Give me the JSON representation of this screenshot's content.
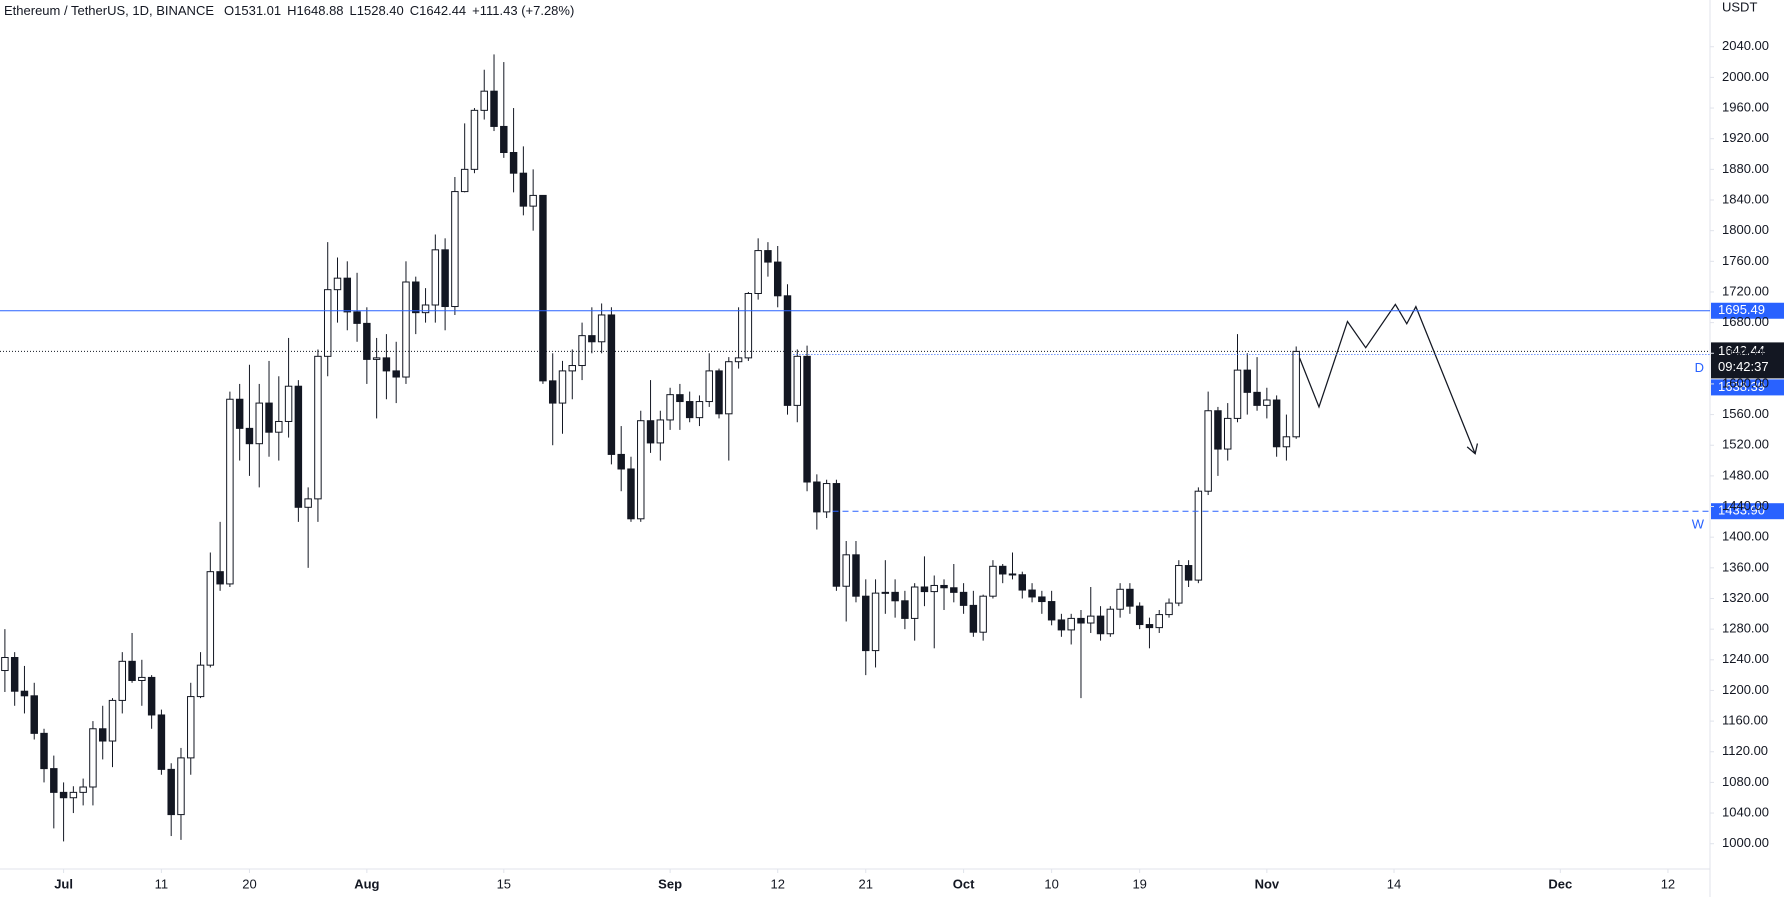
{
  "chart_data": {
    "type": "candlestick",
    "header": {
      "symbol": "Ethereum / TetherUS, 1D, BINANCE",
      "ohlc": [
        {
          "key": "O",
          "text": "1531.01"
        },
        {
          "key": "H",
          "text": "1648.88"
        },
        {
          "key": "L",
          "text": "1528.40"
        },
        {
          "key": "C",
          "text": "1642.44"
        }
      ],
      "change": "+111.43 (+7.28%)"
    },
    "currency": "USDT",
    "up_color": "#ffffff",
    "down_color": "#131722",
    "open": [
      1226,
      1243,
      1199,
      1193,
      1144,
      1098,
      1067,
      1060,
      1067,
      1074,
      1150,
      1134,
      1187,
      1238,
      1213,
      1217,
      1168,
      1097,
      1038,
      1112,
      1192,
      1233,
      1355,
      1339,
      1580,
      1542,
      1522,
      1575,
      1537,
      1551,
      1597,
      1439,
      1450,
      1636,
      1723,
      1738,
      1694,
      1679,
      1632,
      1634,
      1617,
      1609,
      1733,
      1693,
      1703,
      1775,
      1701,
      1851,
      1880,
      1957,
      1982,
      1936,
      1902,
      1875,
      1832,
      1846,
      1604,
      1575,
      1617,
      1624,
      1663,
      1655,
      1690,
      1508,
      1489,
      1424,
      1552,
      1523,
      1553,
      1586,
      1577,
      1556,
      1577,
      1617,
      1561,
      1629,
      1634,
      1718,
      1774,
      1759,
      1715,
      1572,
      1636,
      1472,
      1433,
      1470,
      1336,
      1377,
      1323,
      1252,
      1327,
      1328,
      1317,
      1294,
      1335,
      1329,
      1337,
      1334,
      1328,
      1311,
      1276,
      1323,
      1362,
      1352,
      1351,
      1331,
      1322,
      1316,
      1292,
      1279,
      1294,
      1288,
      1297,
      1274,
      1306,
      1332,
      1310,
      1286,
      1282,
      1299,
      1314,
      1363,
      1344,
      1460,
      1565,
      1515,
      1555,
      1618,
      1589,
      1572,
      1579,
      1518,
      1531.01
    ],
    "high": [
      1280,
      1250,
      1232,
      1210,
      1150,
      1115,
      1080,
      1075,
      1085,
      1160,
      1180,
      1190,
      1250,
      1275,
      1240,
      1220,
      1175,
      1105,
      1125,
      1210,
      1250,
      1380,
      1420,
      1590,
      1600,
      1625,
      1600,
      1630,
      1610,
      1660,
      1605,
      1465,
      1645,
      1785,
      1765,
      1760,
      1745,
      1700,
      1660,
      1665,
      1655,
      1760,
      1740,
      1725,
      1795,
      1790,
      1870,
      1940,
      1960,
      2010,
      2030,
      2020,
      1960,
      1910,
      1880,
      1846,
      1640,
      1630,
      1645,
      1680,
      1700,
      1705,
      1700,
      1545,
      1505,
      1565,
      1605,
      1565,
      1595,
      1600,
      1590,
      1585,
      1640,
      1620,
      1635,
      1700,
      1720,
      1790,
      1785,
      1780,
      1730,
      1645,
      1650,
      1482,
      1475,
      1475,
      1395,
      1395,
      1345,
      1345,
      1370,
      1345,
      1330,
      1340,
      1375,
      1350,
      1345,
      1365,
      1340,
      1330,
      1325,
      1370,
      1365,
      1380,
      1355,
      1340,
      1330,
      1330,
      1300,
      1300,
      1305,
      1335,
      1310,
      1310,
      1340,
      1340,
      1315,
      1295,
      1305,
      1320,
      1370,
      1370,
      1465,
      1590,
      1570,
      1575,
      1665,
      1640,
      1635,
      1595,
      1585,
      1560,
      1648.88
    ],
    "low": [
      1198,
      1180,
      1170,
      1136,
      1080,
      1020,
      1003,
      1040,
      1050,
      1050,
      1110,
      1100,
      1170,
      1210,
      1180,
      1150,
      1090,
      1010,
      1005,
      1090,
      1190,
      1230,
      1330,
      1335,
      1500,
      1480,
      1465,
      1505,
      1500,
      1530,
      1420,
      1360,
      1420,
      1610,
      1680,
      1670,
      1655,
      1600,
      1555,
      1580,
      1575,
      1600,
      1665,
      1680,
      1680,
      1670,
      1690,
      1850,
      1875,
      1945,
      1930,
      1895,
      1850,
      1820,
      1800,
      1600,
      1520,
      1535,
      1580,
      1605,
      1640,
      1640,
      1495,
      1460,
      1420,
      1420,
      1510,
      1500,
      1540,
      1540,
      1550,
      1545,
      1570,
      1555,
      1500,
      1620,
      1630,
      1710,
      1740,
      1700,
      1560,
      1550,
      1460,
      1410,
      1425,
      1330,
      1290,
      1315,
      1220,
      1230,
      1300,
      1295,
      1280,
      1265,
      1310,
      1255,
      1305,
      1315,
      1300,
      1270,
      1265,
      1320,
      1340,
      1345,
      1320,
      1315,
      1300,
      1285,
      1270,
      1260,
      1190,
      1275,
      1265,
      1270,
      1295,
      1300,
      1280,
      1255,
      1275,
      1295,
      1310,
      1335,
      1340,
      1455,
      1480,
      1500,
      1550,
      1560,
      1565,
      1555,
      1505,
      1500,
      1528.4
    ],
    "close": [
      1243,
      1199,
      1193,
      1144,
      1098,
      1067,
      1060,
      1067,
      1074,
      1150,
      1134,
      1187,
      1238,
      1213,
      1217,
      1168,
      1097,
      1038,
      1112,
      1192,
      1233,
      1355,
      1339,
      1580,
      1542,
      1522,
      1575,
      1537,
      1551,
      1597,
      1439,
      1450,
      1636,
      1723,
      1738,
      1694,
      1679,
      1632,
      1634,
      1617,
      1609,
      1733,
      1693,
      1703,
      1775,
      1701,
      1851,
      1880,
      1957,
      1982,
      1936,
      1902,
      1875,
      1832,
      1846,
      1604,
      1575,
      1617,
      1624,
      1663,
      1655,
      1690,
      1508,
      1489,
      1424,
      1552,
      1523,
      1553,
      1586,
      1577,
      1556,
      1577,
      1617,
      1561,
      1629,
      1634,
      1718,
      1774,
      1759,
      1715,
      1572,
      1636,
      1472,
      1433,
      1470,
      1336,
      1377,
      1323,
      1252,
      1327,
      1328,
      1317,
      1294,
      1335,
      1329,
      1337,
      1334,
      1328,
      1311,
      1276,
      1323,
      1362,
      1352,
      1351,
      1331,
      1322,
      1316,
      1292,
      1279,
      1294,
      1288,
      1297,
      1274,
      1306,
      1332,
      1310,
      1286,
      1282,
      1299,
      1314,
      1363,
      1344,
      1460,
      1565,
      1515,
      1555,
      1618,
      1589,
      1572,
      1579,
      1518,
      1531.01,
      1642.44
    ],
    "xlim": [
      -0.5,
      174.3
    ],
    "xticks": [
      {
        "value": 6,
        "label": "Jul"
      },
      {
        "value": 16,
        "label": "11"
      },
      {
        "value": 25,
        "label": "20"
      },
      {
        "value": 37,
        "label": "Aug"
      },
      {
        "value": 51,
        "label": "15"
      },
      {
        "value": 68,
        "label": "Sep"
      },
      {
        "value": 79,
        "label": "12"
      },
      {
        "value": 88,
        "label": "21"
      },
      {
        "value": 98,
        "label": "Oct"
      },
      {
        "value": 107,
        "label": "10"
      },
      {
        "value": 116,
        "label": "19"
      },
      {
        "value": 129,
        "label": "Nov"
      },
      {
        "value": 142,
        "label": "14"
      },
      {
        "value": 159,
        "label": "Dec"
      },
      {
        "value": 170,
        "label": "12"
      }
    ],
    "ylim": [
      967,
      2101
    ],
    "yticks": [
      {
        "value": 1000,
        "label": "1000.00"
      },
      {
        "value": 1040,
        "label": "1040.00"
      },
      {
        "value": 1080,
        "label": "1080.00"
      },
      {
        "value": 1120,
        "label": "1120.00"
      },
      {
        "value": 1160,
        "label": "1160.00"
      },
      {
        "value": 1200,
        "label": "1200.00"
      },
      {
        "value": 1240,
        "label": "1240.00"
      },
      {
        "value": 1280,
        "label": "1280.00"
      },
      {
        "value": 1320,
        "label": "1320.00"
      },
      {
        "value": 1360,
        "label": "1360.00"
      },
      {
        "value": 1400,
        "label": "1400.00"
      },
      {
        "value": 1440,
        "label": "1440.00"
      },
      {
        "value": 1480,
        "label": "1480.00"
      },
      {
        "value": 1520,
        "label": "1520.00"
      },
      {
        "value": 1560,
        "label": "1560.00"
      },
      {
        "value": 1600,
        "label": "1600.00"
      },
      {
        "value": 1640,
        "label": "1640.00"
      },
      {
        "value": 1680,
        "label": "1680.00"
      },
      {
        "value": 1720,
        "label": "1720.00"
      },
      {
        "value": 1760,
        "label": "1760.00"
      },
      {
        "value": 1800,
        "label": "1800.00"
      },
      {
        "value": 1840,
        "label": "1840.00"
      },
      {
        "value": 1880,
        "label": "1880.00"
      },
      {
        "value": 1920,
        "label": "1920.00"
      },
      {
        "value": 1960,
        "label": "1960.00"
      },
      {
        "value": 2000,
        "label": "2000.00"
      },
      {
        "value": 2040,
        "label": "2040.00"
      }
    ],
    "grid": false,
    "levels": [
      {
        "value": 1695.49,
        "style": "solid",
        "color": "#2962ff"
      },
      {
        "value": 1638.39,
        "style": "dotted",
        "color": "#2962ff",
        "label": "D"
      },
      {
        "value": 1433.9,
        "value_label": "1433.90",
        "style": "dashed",
        "color": "#2962ff",
        "label": "W"
      }
    ],
    "last_price": 1642.44,
    "countdown": "09:42:37"
  }
}
